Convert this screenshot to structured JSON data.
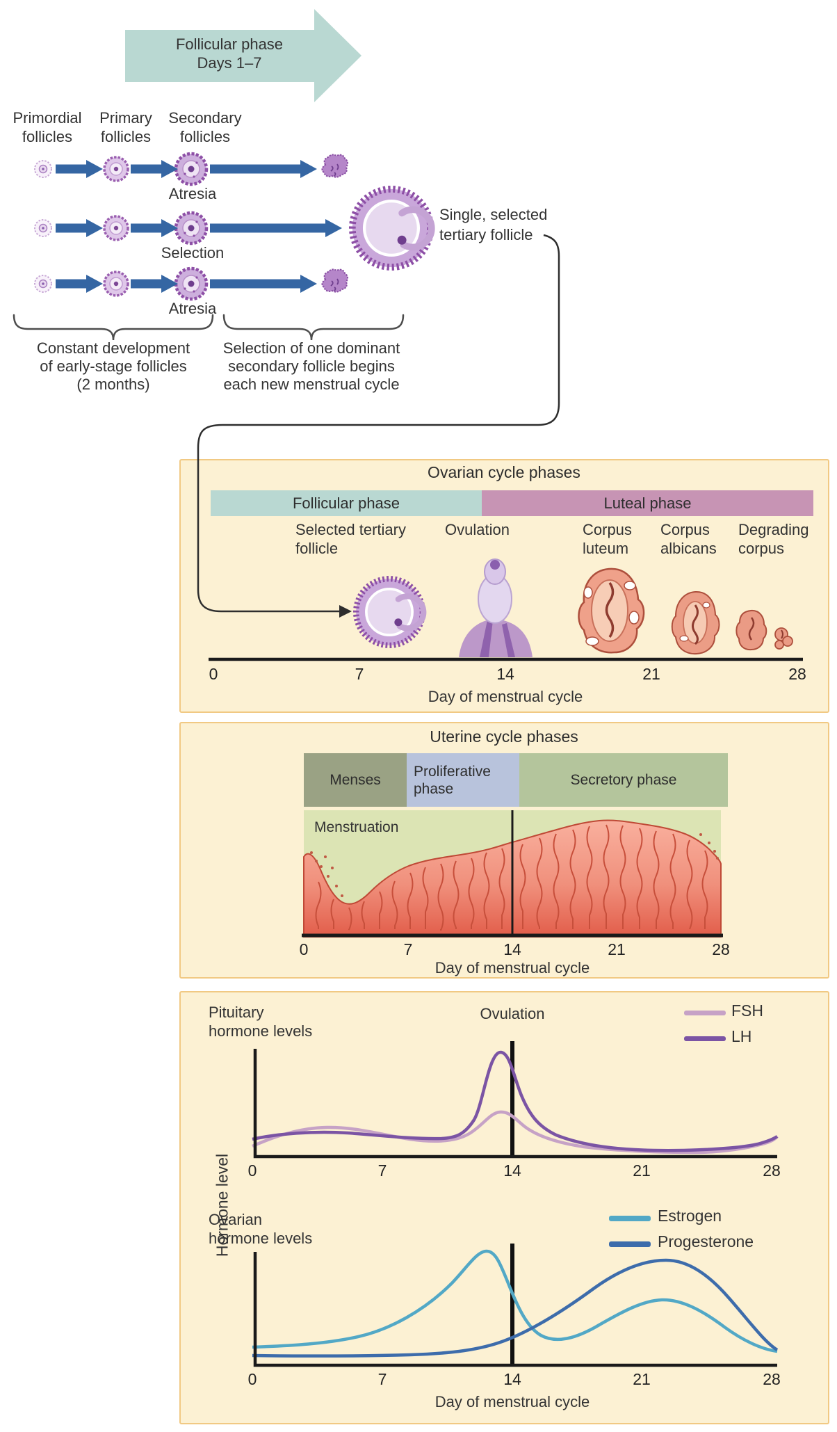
{
  "colors": {
    "panel_bg": "#fcf1d3",
    "panel_border": "#f1c983",
    "follicular_teal": "#b9d8d2",
    "luteal_pink": "#c794b4",
    "menses": "#9aa284",
    "proliferative": "#b8c3dc",
    "secretory": "#b4c59c",
    "uterine_bg": "#dce4b4",
    "endometrium": "#f08a76",
    "fsh": "#c6a2c6",
    "lh": "#7b54a4",
    "estrogen": "#52a8c6",
    "progesterone": "#3d6cab",
    "dev_arrow_blue": "#3566a3",
    "phase_arrow_teal": "#b9d8d2"
  },
  "top": {
    "arrow": {
      "line1": "Follicular phase",
      "line2": "Days 1–7"
    },
    "columns": [
      {
        "l1": "Primordial",
        "l2": "follicles"
      },
      {
        "l1": "Primary",
        "l2": "follicles"
      },
      {
        "l1": "Secondary",
        "l2": "follicles"
      }
    ],
    "rows": [
      {
        "label": "Atresia"
      },
      {
        "label": "Selection"
      },
      {
        "label": "Atresia"
      }
    ],
    "selected_label": {
      "l1": "Single, selected",
      "l2": "tertiary follicle"
    },
    "brace_left": {
      "l1": "Constant development",
      "l2": "of early-stage follicles",
      "l3": "(2 months)"
    },
    "brace_right": {
      "l1": "Selection of one dominant",
      "l2": "secondary follicle begins",
      "l3": "each new menstrual cycle"
    }
  },
  "ovarian": {
    "title": "Ovarian cycle phases",
    "follicular": "Follicular phase",
    "luteal": "Luteal phase",
    "stages": [
      {
        "l1": "Selected tertiary",
        "l2": "follicle"
      },
      {
        "l1": "Ovulation",
        "l2": ""
      },
      {
        "l1": "Corpus",
        "l2": "luteum"
      },
      {
        "l1": "Corpus",
        "l2": "albicans"
      },
      {
        "l1": "Degrading",
        "l2": "corpus"
      }
    ],
    "ticks": [
      "0",
      "7",
      "14",
      "21",
      "28"
    ],
    "xlabel": "Day of menstrual cycle"
  },
  "uterine": {
    "title": "Uterine cycle phases",
    "phases": [
      {
        "l1": "Menses",
        "l2": ""
      },
      {
        "l1": "Proliferative",
        "l2": "phase"
      },
      {
        "l1": "Secretory phase",
        "l2": ""
      }
    ],
    "annotation": "Menstruation",
    "ticks": [
      "0",
      "7",
      "14",
      "21",
      "28"
    ],
    "xlabel": "Day of menstrual cycle"
  },
  "hormones": {
    "pituitary": {
      "l1": "Pituitary",
      "l2": "hormone levels"
    },
    "ovulation": "Ovulation",
    "ylabel": "Hormone level",
    "legend1": [
      {
        "label": "FSH",
        "color": "#c6a2c6"
      },
      {
        "label": "LH",
        "color": "#7b54a4"
      }
    ],
    "ovarian": {
      "l1": "Ovarian",
      "l2": "hormone levels"
    },
    "legend2": [
      {
        "label": "Estrogen",
        "color": "#52a8c6"
      },
      {
        "label": "Progesterone",
        "color": "#3d6cab"
      }
    ],
    "ticks": [
      "0",
      "7",
      "14",
      "21",
      "28"
    ],
    "xlabel": "Day of menstrual cycle"
  },
  "chart_data": [
    {
      "type": "line",
      "title": "Pituitary hormone levels",
      "xlabel": "Day of menstrual cycle",
      "ylabel": "Hormone level",
      "x_ticks": [
        0,
        7,
        14,
        21,
        28
      ],
      "ovulation_line_day": 14,
      "x": [
        0,
        2,
        4,
        6,
        8,
        10,
        12,
        13,
        14,
        16,
        18,
        20,
        22,
        24,
        26,
        28
      ],
      "series": [
        {
          "name": "FSH",
          "values": [
            10,
            22,
            27,
            25,
            20,
            16,
            18,
            42,
            34,
            20,
            14,
            11,
            9,
            8,
            11,
            20
          ]
        },
        {
          "name": "LH",
          "values": [
            15,
            19,
            20,
            20,
            18,
            16,
            30,
            95,
            70,
            35,
            18,
            12,
            10,
            9,
            11,
            18
          ]
        }
      ],
      "legend_position": "top-right",
      "grid": false
    },
    {
      "type": "line",
      "title": "Ovarian hormone levels",
      "xlabel": "Day of menstrual cycle",
      "ylabel": "Hormone level",
      "x_ticks": [
        0,
        7,
        14,
        21,
        28
      ],
      "ovulation_line_day": 14,
      "x": [
        0,
        2,
        4,
        6,
        8,
        10,
        12,
        13,
        14,
        16,
        18,
        20,
        22,
        24,
        26,
        28
      ],
      "series": [
        {
          "name": "Estrogen",
          "values": [
            8,
            9,
            11,
            15,
            24,
            40,
            75,
            88,
            62,
            22,
            32,
            46,
            52,
            44,
            26,
            10
          ]
        },
        {
          "name": "Progesterone",
          "values": [
            5,
            5,
            5,
            5,
            5,
            6,
            8,
            10,
            16,
            38,
            60,
            80,
            86,
            78,
            50,
            12
          ]
        }
      ],
      "legend_position": "top-right",
      "grid": false
    }
  ]
}
